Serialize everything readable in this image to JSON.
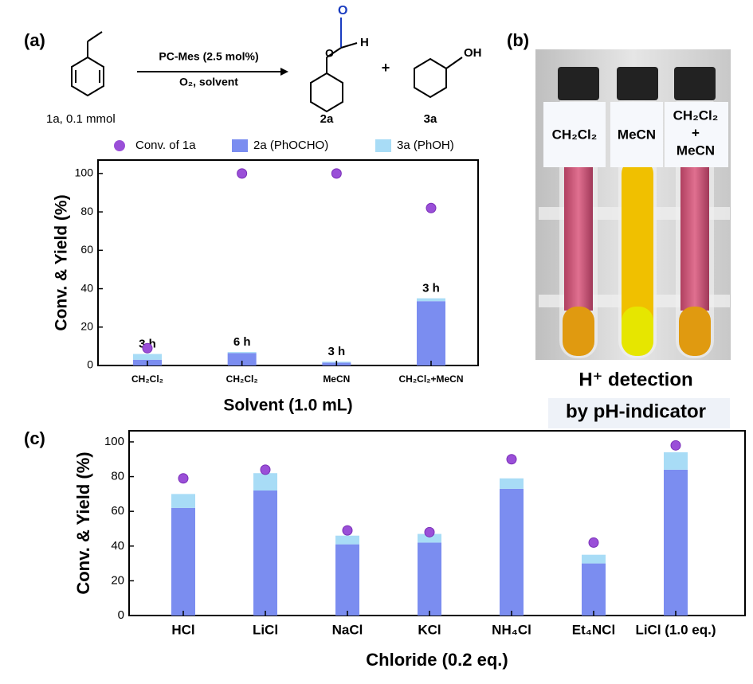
{
  "panel_labels": [
    "(a)",
    "(b)",
    "(c)"
  ],
  "scheme": {
    "reagent": "PC-Mes (2.5 mol%)",
    "conditions": "O₂, solvent",
    "substrate": "1a, 0.1 mmol",
    "product_1": "2a",
    "product_2": "3a",
    "plus": "+",
    "atom_o": "O",
    "atom_h": "H",
    "atom_oh": "OH"
  },
  "photo": {
    "labels": [
      [
        "CH₂Cl₂"
      ],
      [
        "MeCN"
      ],
      [
        "CH₂Cl₂",
        "+",
        "MeCN"
      ]
    ],
    "caption": [
      "H⁺ detection",
      "by pH-indicator"
    ]
  },
  "chart_data": [
    {
      "type": "bar",
      "categories": [
        "CH₂Cl₂",
        "CH₂Cl₂",
        "MeCN",
        "CH₂Cl₂+MeCN"
      ],
      "series": [
        {
          "name": "Conv. of 1a",
          "type": "scatter",
          "color": "#9a4fd8",
          "values": [
            9,
            100,
            100,
            82
          ]
        },
        {
          "name": "2a (PhOCHO)",
          "type": "bar",
          "color": "#7b8df0",
          "values": [
            3,
            6.5,
            1.5,
            33.5
          ]
        },
        {
          "name": "3a (PhOH)",
          "type": "bar",
          "color": "#a8dcf6",
          "values": [
            3,
            0.5,
            0.5,
            1.5
          ]
        }
      ],
      "bar_labels": [
        "3 h",
        "6 h",
        "3 h",
        "3 h"
      ],
      "xlabel": "Solvent (1.0 mL)",
      "ylabel": "Conv. & Yield (%)",
      "ylim": [
        0,
        107
      ],
      "yticks": [
        0,
        20,
        40,
        60,
        80,
        100
      ]
    },
    {
      "type": "bar",
      "categories": [
        "HCl",
        "LiCl",
        "NaCl",
        "KCl",
        "NH₄Cl",
        "Et₄NCl",
        "LiCl (1.0 eq.)"
      ],
      "series": [
        {
          "type": "scatter",
          "color": "#9a4fd8",
          "values": [
            79,
            84,
            49,
            48,
            90,
            42,
            98
          ]
        },
        {
          "type": "bar",
          "color": "#7b8df0",
          "values": [
            62,
            72,
            41,
            42,
            73,
            30,
            84
          ]
        },
        {
          "type": "bar",
          "color": "#a8dcf6",
          "values": [
            8,
            10,
            5,
            5,
            6,
            5,
            10
          ]
        }
      ],
      "xlabel": "Chloride (0.2 eq.)",
      "ylabel": "Conv. & Yield (%)",
      "ylim": [
        0,
        106.4
      ],
      "yticks": [
        0,
        20,
        40,
        60,
        80,
        100
      ]
    }
  ]
}
